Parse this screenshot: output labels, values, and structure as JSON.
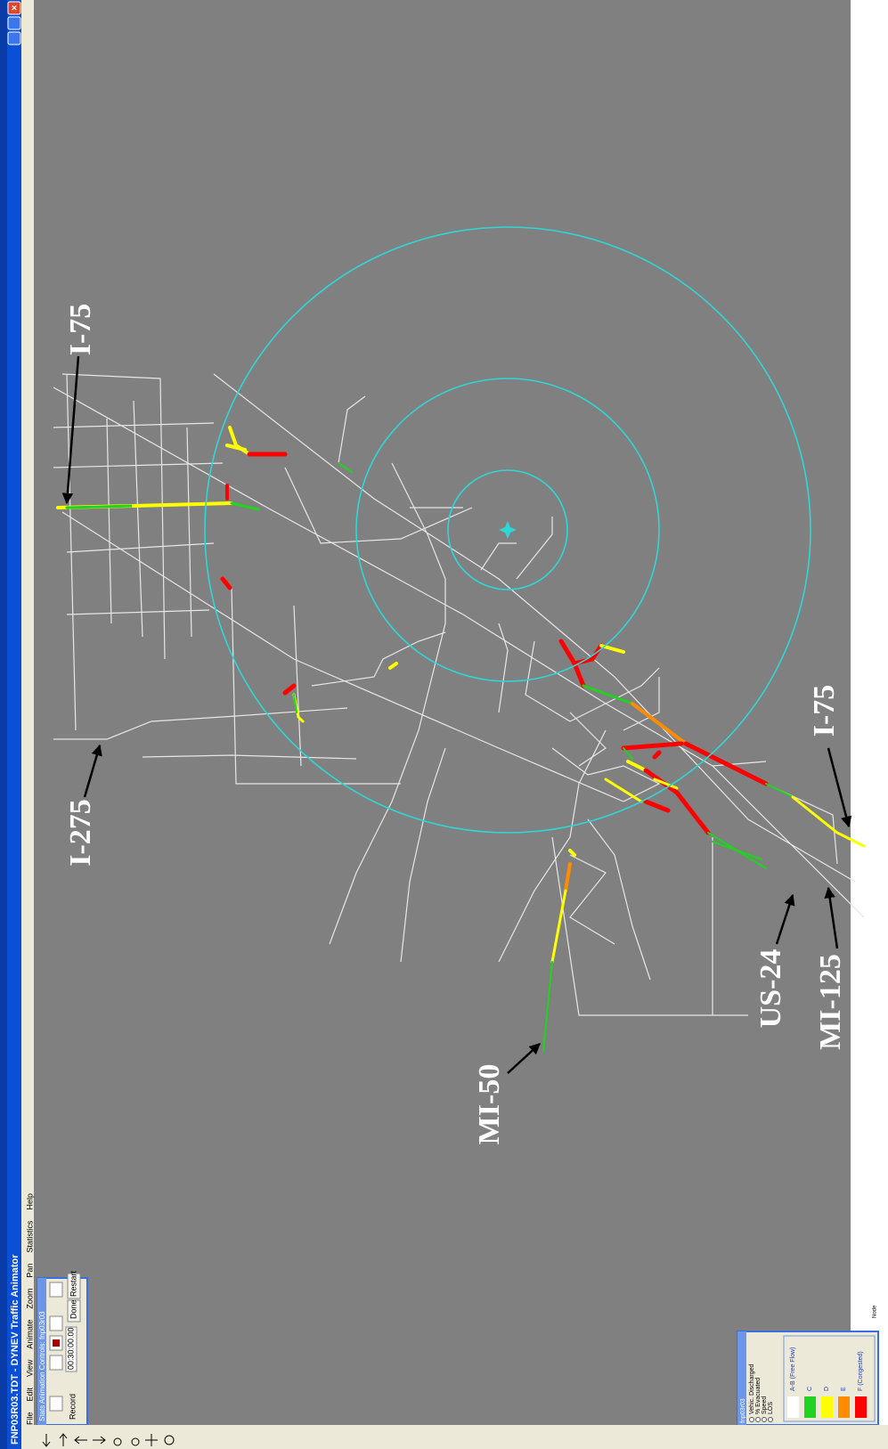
{
  "window": {
    "title": "FNP03R03.TDT - DYNEV Traffic Animator"
  },
  "menu": [
    "File",
    "Edit",
    "View",
    "Animate",
    "Zoom",
    "Pan",
    "Statistics",
    "Help"
  ],
  "controls": {
    "title": "Stats Animation Controls: fnp03r03",
    "record": "Record",
    "time": "00:30:00.00",
    "done": "Done",
    "restart": "Restart"
  },
  "legend": {
    "title": "fnp03r03",
    "options": [
      "Vehic. Discharged",
      "% Evacuated",
      "Speed",
      "LOS"
    ],
    "items": [
      "A-B (Free Flow)",
      "C",
      "D",
      "E",
      "F (Congested)"
    ]
  },
  "labels": [
    "I-75",
    "I-275",
    "I-75",
    "US-24",
    "MI-125",
    "MI-50"
  ],
  "status": "Node"
}
